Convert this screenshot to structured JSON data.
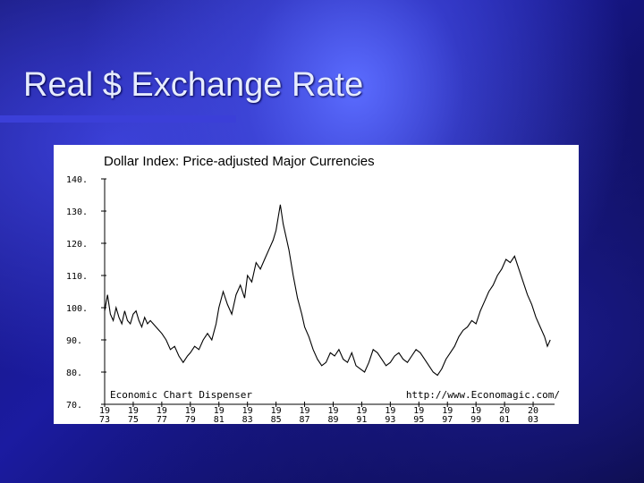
{
  "slide": {
    "title": "Real $ Exchange Rate",
    "accent_color": "#3b3fd8"
  },
  "chart_data": {
    "type": "line",
    "title": "Dollar Index: Price-adjusted Major Currencies",
    "xlabel": "",
    "ylabel": "",
    "ylim": [
      70,
      140
    ],
    "xlim": [
      1973,
      2004.5
    ],
    "y_ticks": [
      {
        "value": 140,
        "label": "140."
      },
      {
        "value": 130,
        "label": "130."
      },
      {
        "value": 120,
        "label": "120."
      },
      {
        "value": 110,
        "label": "110."
      },
      {
        "value": 100,
        "label": "100."
      },
      {
        "value": 90,
        "label": "90."
      },
      {
        "value": 80,
        "label": "80."
      },
      {
        "value": 70,
        "label": "70."
      }
    ],
    "x_ticks": [
      {
        "value": 1973,
        "top": "19",
        "bottom": "73"
      },
      {
        "value": 1975,
        "top": "19",
        "bottom": "75"
      },
      {
        "value": 1977,
        "top": "19",
        "bottom": "77"
      },
      {
        "value": 1979,
        "top": "19",
        "bottom": "79"
      },
      {
        "value": 1981,
        "top": "19",
        "bottom": "81"
      },
      {
        "value": 1983,
        "top": "19",
        "bottom": "83"
      },
      {
        "value": 1985,
        "top": "19",
        "bottom": "85"
      },
      {
        "value": 1987,
        "top": "19",
        "bottom": "87"
      },
      {
        "value": 1989,
        "top": "19",
        "bottom": "89"
      },
      {
        "value": 1991,
        "top": "19",
        "bottom": "91"
      },
      {
        "value": 1993,
        "top": "19",
        "bottom": "93"
      },
      {
        "value": 1995,
        "top": "19",
        "bottom": "95"
      },
      {
        "value": 1997,
        "top": "19",
        "bottom": "97"
      },
      {
        "value": 1999,
        "top": "19",
        "bottom": "99"
      },
      {
        "value": 2001,
        "top": "20",
        "bottom": "01"
      },
      {
        "value": 2003,
        "top": "20",
        "bottom": "03"
      }
    ],
    "annotations": {
      "left": "Economic Chart Dispenser",
      "right": "http://www.Economagic.com/"
    },
    "series": [
      {
        "line_color": "#000000",
        "x": [
          1973.0,
          1973.2,
          1973.4,
          1973.6,
          1973.8,
          1974.0,
          1974.2,
          1974.4,
          1974.6,
          1974.8,
          1975.0,
          1975.2,
          1975.4,
          1975.6,
          1975.8,
          1976.0,
          1976.2,
          1976.4,
          1976.6,
          1976.8,
          1977.0,
          1977.3,
          1977.6,
          1977.9,
          1978.2,
          1978.5,
          1978.8,
          1979.0,
          1979.3,
          1979.6,
          1979.9,
          1980.2,
          1980.5,
          1980.8,
          1981.0,
          1981.3,
          1981.6,
          1981.9,
          1982.2,
          1982.5,
          1982.8,
          1983.0,
          1983.3,
          1983.6,
          1983.9,
          1984.2,
          1984.5,
          1984.8,
          1985.0,
          1985.15,
          1985.3,
          1985.5,
          1985.7,
          1985.9,
          1986.2,
          1986.5,
          1986.8,
          1987.0,
          1987.3,
          1987.6,
          1987.9,
          1988.2,
          1988.5,
          1988.8,
          1989.1,
          1989.4,
          1989.7,
          1990.0,
          1990.3,
          1990.6,
          1990.9,
          1991.2,
          1991.5,
          1991.8,
          1992.1,
          1992.4,
          1992.7,
          1993.0,
          1993.3,
          1993.6,
          1993.9,
          1994.2,
          1994.5,
          1994.8,
          1995.1,
          1995.4,
          1995.7,
          1996.0,
          1996.3,
          1996.6,
          1996.9,
          1997.2,
          1997.5,
          1997.8,
          1998.1,
          1998.4,
          1998.7,
          1999.0,
          1999.3,
          1999.6,
          1999.9,
          2000.2,
          2000.5,
          2000.8,
          2001.1,
          2001.4,
          2001.7,
          2002.0,
          2002.3,
          2002.6,
          2002.9,
          2003.2,
          2003.5,
          2003.8,
          2004.0,
          2004.2
        ],
        "values": [
          99,
          104,
          98,
          96,
          100,
          97,
          95,
          99,
          96,
          95,
          98,
          99,
          96,
          94,
          97,
          95,
          96,
          95,
          94,
          93,
          92,
          90,
          87,
          88,
          85,
          83,
          85,
          86,
          88,
          87,
          90,
          92,
          90,
          95,
          100,
          105,
          101,
          98,
          104,
          107,
          103,
          110,
          108,
          114,
          112,
          115,
          118,
          121,
          124,
          128,
          132,
          126,
          122,
          118,
          110,
          103,
          98,
          94,
          91,
          87,
          84,
          82,
          83,
          86,
          85,
          87,
          84,
          83,
          86,
          82,
          81,
          80,
          83,
          87,
          86,
          84,
          82,
          83,
          85,
          86,
          84,
          83,
          85,
          87,
          86,
          84,
          82,
          80,
          79,
          81,
          84,
          86,
          88,
          91,
          93,
          94,
          96,
          95,
          99,
          102,
          105,
          107,
          110,
          112,
          115,
          114,
          116,
          112,
          108,
          104,
          101,
          97,
          94,
          91,
          88,
          90
        ]
      }
    ]
  }
}
